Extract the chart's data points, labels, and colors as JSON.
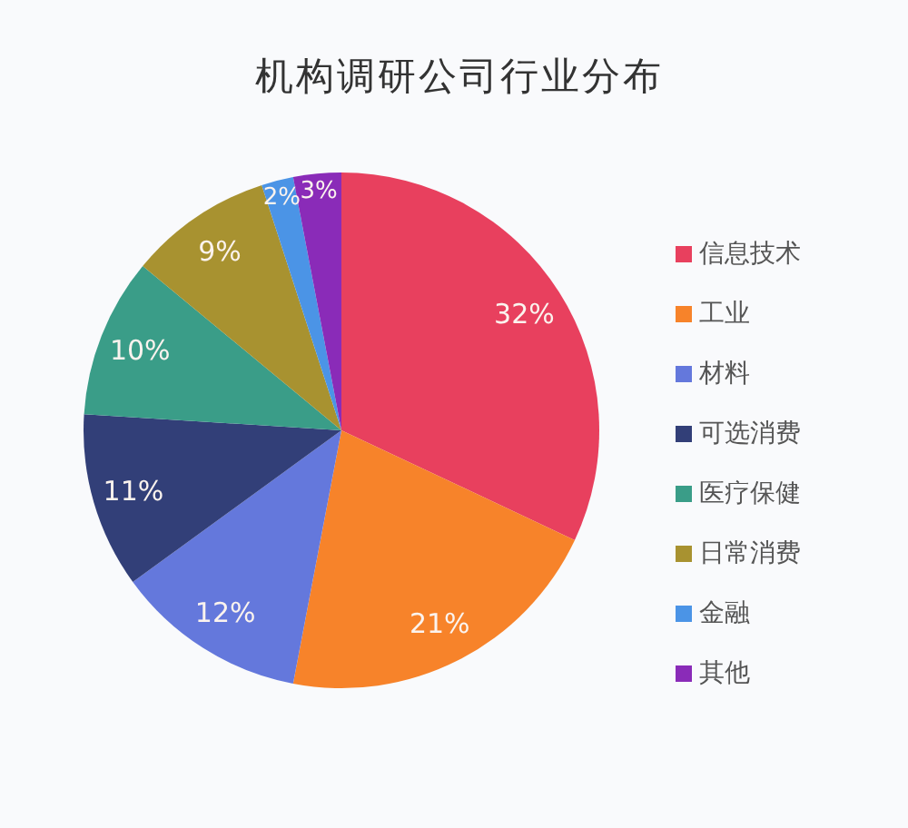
{
  "chart_data": {
    "type": "pie",
    "title": "机构调研公司行业分布",
    "categories": [
      "信息技术",
      "工业",
      "材料",
      "可选消费",
      "医疗保健",
      "日常消费",
      "金融",
      "其他"
    ],
    "values": [
      32,
      21,
      12,
      11,
      10,
      9,
      2,
      3
    ],
    "value_labels": [
      "32%",
      "21%",
      "12%",
      "11%",
      "10%",
      "9%",
      "2%",
      "3%"
    ],
    "colors": [
      "#e8405e",
      "#f7832a",
      "#6478dc",
      "#323f78",
      "#3a9d88",
      "#a89230",
      "#4b94e6",
      "#8a2bb8"
    ],
    "legend": "right"
  }
}
